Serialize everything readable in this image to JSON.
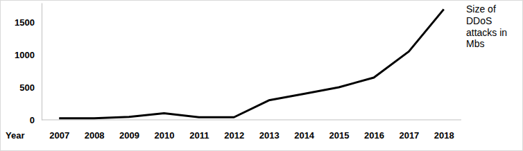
{
  "chart_data": {
    "type": "line",
    "x_label": "Year",
    "y_label": "Size of DDoS attacks in Mbs",
    "categories": [
      "2007",
      "2008",
      "2009",
      "2010",
      "2011",
      "2012",
      "2013",
      "2014",
      "2015",
      "2016",
      "2017",
      "2018"
    ],
    "values": [
      25,
      25,
      45,
      100,
      40,
      40,
      300,
      400,
      500,
      650,
      1050,
      1700
    ],
    "color": "#000000",
    "ylim": [
      0,
      1800
    ],
    "yticks": [
      0,
      500,
      1000,
      1500
    ],
    "grid": false
  }
}
